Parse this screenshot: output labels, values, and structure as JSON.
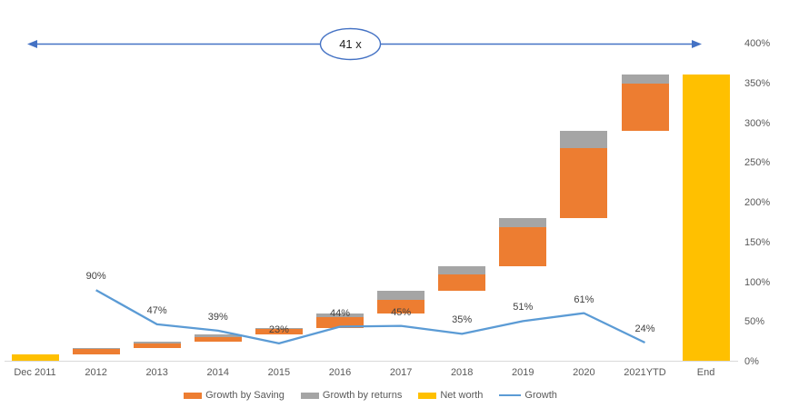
{
  "annotation": {
    "label": "41 x"
  },
  "colors": {
    "saving": "#ED7D31",
    "returns": "#A5A5A5",
    "net_worth": "#FFC000",
    "growth_line": "#5B9BD5",
    "arrow": "#4472C4",
    "axis_text": "#595959",
    "baseline": "#D9D9D9"
  },
  "legend": [
    {
      "label": "Growth by Saving",
      "color": "#ED7D31",
      "swatch": "box"
    },
    {
      "label": "Growth by returns",
      "color": "#A5A5A5",
      "swatch": "box"
    },
    {
      "label": "Net worth",
      "color": "#FFC000",
      "swatch": "box"
    },
    {
      "label": "Growth",
      "color": "#5B9BD5",
      "swatch": "line"
    }
  ],
  "chart_data": {
    "type": "waterfall+line",
    "title": "",
    "categories": [
      "Dec 2011",
      "2012",
      "2013",
      "2014",
      "2015",
      "2016",
      "2017",
      "2018",
      "2019",
      "2020",
      "2021YTD",
      "End"
    ],
    "y_axis": {
      "side": "right",
      "min": 0,
      "max": 400,
      "step": 50,
      "ticks": [
        {
          "label": "0%",
          "value": 0
        },
        {
          "label": "50%",
          "value": 50
        },
        {
          "label": "100%",
          "value": 100
        },
        {
          "label": "150%",
          "value": 150
        },
        {
          "label": "200%",
          "value": 200
        },
        {
          "label": "250%",
          "value": 250
        },
        {
          "label": "300%",
          "value": 300
        },
        {
          "label": "350%",
          "value": 350
        },
        {
          "label": "400%",
          "value": 400
        }
      ]
    },
    "grid": false,
    "bars": [
      {
        "category": "Dec 2011",
        "segments": [
          {
            "series": "net_worth",
            "from": 0,
            "to": 8.9
          }
        ]
      },
      {
        "category": "2012",
        "segments": [
          {
            "series": "saving",
            "from": 8.9,
            "to": 16.3
          },
          {
            "series": "returns",
            "from": 16.3,
            "to": 16.9
          }
        ]
      },
      {
        "category": "2013",
        "segments": [
          {
            "series": "saving",
            "from": 16.9,
            "to": 23.3
          },
          {
            "series": "returns",
            "from": 23.3,
            "to": 24.8
          }
        ]
      },
      {
        "category": "2014",
        "segments": [
          {
            "series": "saving",
            "from": 24.8,
            "to": 31.0
          },
          {
            "series": "returns",
            "from": 31.0,
            "to": 34.5
          }
        ]
      },
      {
        "category": "2015",
        "segments": [
          {
            "series": "saving",
            "from": 34.5,
            "to": 41.1
          },
          {
            "series": "returns",
            "from": 41.1,
            "to": 42.4
          }
        ]
      },
      {
        "category": "2016",
        "segments": [
          {
            "series": "saving",
            "from": 42.4,
            "to": 56.2
          },
          {
            "series": "returns",
            "from": 56.2,
            "to": 61.1
          }
        ]
      },
      {
        "category": "2017",
        "segments": [
          {
            "series": "saving",
            "from": 61.1,
            "to": 77.5
          },
          {
            "series": "returns",
            "from": 77.5,
            "to": 88.6
          }
        ]
      },
      {
        "category": "2018",
        "segments": [
          {
            "series": "saving",
            "from": 88.6,
            "to": 109.5
          },
          {
            "series": "returns",
            "from": 109.5,
            "to": 119.6
          }
        ]
      },
      {
        "category": "2019",
        "segments": [
          {
            "series": "saving",
            "from": 119.6,
            "to": 168.6
          },
          {
            "series": "returns",
            "from": 168.6,
            "to": 180.6
          }
        ]
      },
      {
        "category": "2020",
        "segments": [
          {
            "series": "saving",
            "from": 180.6,
            "to": 268.6
          },
          {
            "series": "returns",
            "from": 268.6,
            "to": 290.8
          }
        ]
      },
      {
        "category": "2021YTD",
        "segments": [
          {
            "series": "saving",
            "from": 290.8,
            "to": 350.2
          },
          {
            "series": "returns",
            "from": 350.2,
            "to": 360.6
          }
        ]
      },
      {
        "category": "End",
        "segments": [
          {
            "series": "net_worth",
            "from": 0,
            "to": 360.6
          }
        ]
      }
    ],
    "line": {
      "name": "Growth",
      "points": [
        {
          "category": "2012",
          "value": 90,
          "label": "90%"
        },
        {
          "category": "2013",
          "value": 47,
          "label": "47%"
        },
        {
          "category": "2014",
          "value": 39,
          "label": "39%"
        },
        {
          "category": "2015",
          "value": 23,
          "label": "23%"
        },
        {
          "category": "2016",
          "value": 44,
          "label": "44%"
        },
        {
          "category": "2017",
          "value": 45,
          "label": "45%"
        },
        {
          "category": "2018",
          "value": 35,
          "label": "35%"
        },
        {
          "category": "2019",
          "value": 51,
          "label": "51%"
        },
        {
          "category": "2020",
          "value": 61,
          "label": "61%"
        },
        {
          "category": "2021YTD",
          "value": 24,
          "label": "24%"
        }
      ]
    }
  }
}
